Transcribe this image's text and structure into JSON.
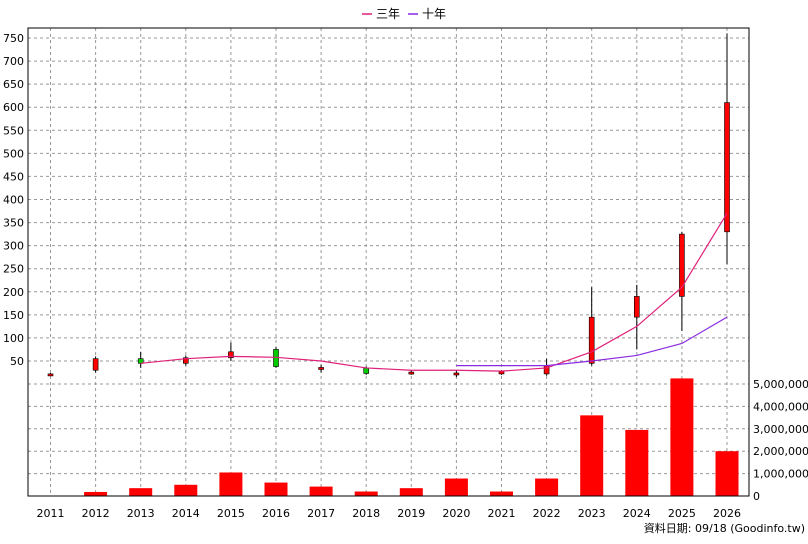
{
  "chart_data": {
    "type": "candlestick+bar",
    "legend": [
      {
        "name": "三年",
        "color": "#e0207a"
      },
      {
        "name": "十年",
        "color": "#8a2be2"
      }
    ],
    "source_note": "資料日期: 09/18 (Goodinfo.tw)",
    "x": [
      "2011",
      "2012",
      "2013",
      "2014",
      "2015",
      "2016",
      "2017",
      "2018",
      "2019",
      "2020",
      "2021",
      "2022",
      "2023",
      "2024",
      "2025",
      "2026"
    ],
    "price_axis": {
      "ticks": [
        50,
        100,
        150,
        200,
        250,
        300,
        350,
        400,
        450,
        500,
        550,
        600,
        650,
        700,
        750
      ],
      "ylim": [
        0,
        770
      ]
    },
    "volume_axis": {
      "ticks": [
        0,
        1000000,
        2000000,
        3000000,
        4000000,
        5000000
      ],
      "tick_labels": [
        "0",
        "1,000,000",
        "2,000,000",
        "3,000,000",
        "4,000,000",
        "5,000,000"
      ],
      "ylim": [
        0,
        5100000
      ]
    },
    "candles": [
      {
        "open": 22,
        "close": 22,
        "high": 24,
        "low": 20
      },
      {
        "open": 30,
        "close": 55,
        "high": 60,
        "low": 25
      },
      {
        "open": 55,
        "close": 45,
        "high": 70,
        "low": 35
      },
      {
        "open": 45,
        "close": 57,
        "high": 62,
        "low": 40
      },
      {
        "open": 57,
        "close": 70,
        "high": 90,
        "low": 50
      },
      {
        "open": 75,
        "close": 38,
        "high": 80,
        "low": 35
      },
      {
        "open": 36,
        "close": 36,
        "high": 42,
        "low": 25
      },
      {
        "open": 35,
        "close": 23,
        "high": 38,
        "low": 20
      },
      {
        "open": 26,
        "close": 26,
        "high": 30,
        "low": 20
      },
      {
        "open": 24,
        "close": 24,
        "high": 30,
        "low": 15
      },
      {
        "open": 22,
        "close": 28,
        "high": 30,
        "low": 20
      },
      {
        "open": 22,
        "close": 40,
        "high": 55,
        "low": 18
      },
      {
        "open": 45,
        "close": 145,
        "high": 210,
        "low": 40
      },
      {
        "open": 145,
        "close": 190,
        "high": 215,
        "low": 75
      },
      {
        "open": 190,
        "close": 325,
        "high": 330,
        "low": 115
      },
      {
        "open": 330,
        "close": 610,
        "high": 760,
        "low": 260
      }
    ],
    "volume": [
      0,
      180000,
      350000,
      500000,
      1050000,
      600000,
      420000,
      200000,
      350000,
      780000,
      200000,
      780000,
      3600000,
      2950000,
      5250000,
      2000000
    ],
    "series": [
      {
        "name": "三年",
        "values": [
          null,
          null,
          45,
          55,
          60,
          58,
          50,
          35,
          30,
          30,
          28,
          35,
          70,
          125,
          210,
          370
        ]
      },
      {
        "name": "十年",
        "values": [
          null,
          null,
          null,
          null,
          null,
          null,
          null,
          null,
          null,
          40,
          40,
          40,
          50,
          62,
          88,
          145
        ]
      }
    ]
  }
}
